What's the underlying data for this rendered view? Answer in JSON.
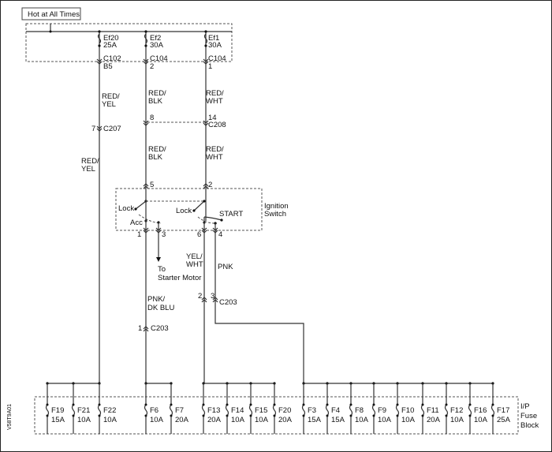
{
  "title": "Hot at All Times",
  "doc_code": "V58T9A01",
  "top_fuses": [
    {
      "name": "Ef20",
      "rating": "25A",
      "connector": "C102",
      "pin": "B5",
      "wire": [
        "RED/",
        "YEL"
      ]
    },
    {
      "name": "Ef2",
      "rating": "30A",
      "connector": "C104",
      "pin": "2",
      "wire": [
        "RED/",
        "BLK"
      ]
    },
    {
      "name": "Ef1",
      "rating": "30A",
      "connector": "C104",
      "pin": "1",
      "wire": [
        "RED/",
        "WHT"
      ]
    }
  ],
  "c207": {
    "name": "C207",
    "pin": "7",
    "wire_below": [
      "RED/",
      "YEL"
    ]
  },
  "c208": {
    "name": "C208",
    "pin_left": "8",
    "pin_right": "14",
    "wire_left": [
      "RED/",
      "BLK"
    ],
    "wire_right": [
      "RED/",
      "WHT"
    ]
  },
  "ignition_switch": {
    "label": [
      "Ignition",
      "Switch"
    ],
    "pin_in_left": "5",
    "pin_in_right": "2",
    "lock": "Lock",
    "acc": "Acc",
    "start": "START",
    "pins_out": [
      "1",
      "3",
      "6",
      "4"
    ]
  },
  "starter": [
    "To",
    "Starter Motor"
  ],
  "wires_lower": {
    "acc": [
      "PNK/",
      "DK BLU"
    ],
    "ign": [
      "YEL/",
      "WHT"
    ],
    "start": "PNK"
  },
  "c203": {
    "name": "C203",
    "pin_acc": "1",
    "pin_ign": "2",
    "pin_start": "3"
  },
  "fuse_block": {
    "label": [
      "I/P",
      "Fuse",
      "Block"
    ],
    "fuses": [
      {
        "name": "F19",
        "rating": "15A"
      },
      {
        "name": "F21",
        "rating": "10A"
      },
      {
        "name": "F22",
        "rating": "10A"
      },
      {
        "name": "F6",
        "rating": "10A"
      },
      {
        "name": "F7",
        "rating": "20A"
      },
      {
        "name": "F13",
        "rating": "20A"
      },
      {
        "name": "F14",
        "rating": "10A"
      },
      {
        "name": "F15",
        "rating": "10A"
      },
      {
        "name": "F20",
        "rating": "20A"
      },
      {
        "name": "F3",
        "rating": "15A"
      },
      {
        "name": "F4",
        "rating": "15A"
      },
      {
        "name": "F8",
        "rating": "10A"
      },
      {
        "name": "F9",
        "rating": "10A"
      },
      {
        "name": "F10",
        "rating": "10A"
      },
      {
        "name": "F11",
        "rating": "20A"
      },
      {
        "name": "F12",
        "rating": "10A"
      },
      {
        "name": "F16",
        "rating": "10A"
      },
      {
        "name": "F17",
        "rating": "25A"
      }
    ]
  }
}
